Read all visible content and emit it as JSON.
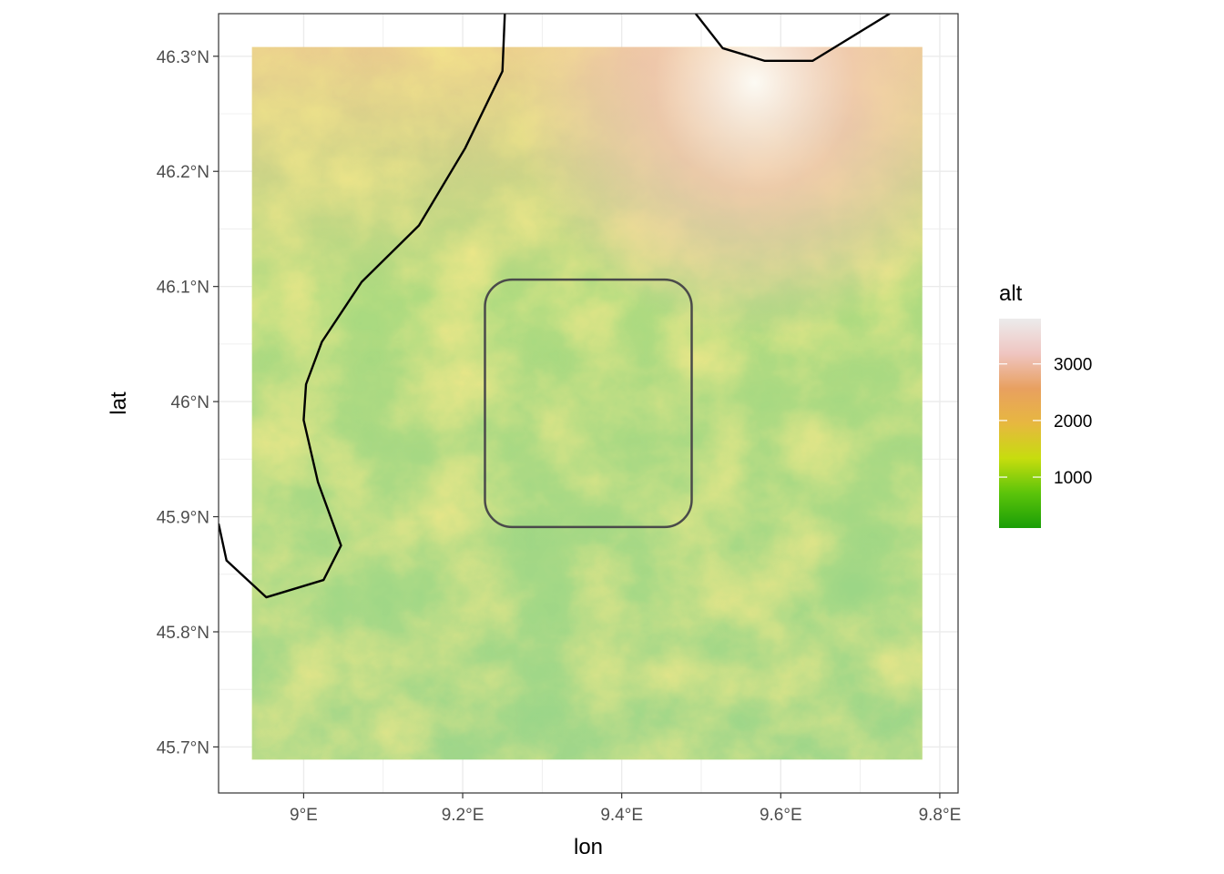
{
  "chart_data": {
    "type": "heatmap",
    "title": "",
    "xlabel": "lon",
    "ylabel": "lat",
    "xlim": [
      8.893,
      9.823
    ],
    "ylim": [
      45.66,
      46.337
    ],
    "x_ticks": [
      {
        "value": 9.0,
        "label": "9°E"
      },
      {
        "value": 9.2,
        "label": "9.2°E"
      },
      {
        "value": 9.4,
        "label": "9.4°E"
      },
      {
        "value": 9.6,
        "label": "9.6°E"
      },
      {
        "value": 9.8,
        "label": "9.8°E"
      }
    ],
    "y_ticks": [
      {
        "value": 45.7,
        "label": "45.7°N"
      },
      {
        "value": 45.8,
        "label": "45.8°N"
      },
      {
        "value": 45.9,
        "label": "45.9°N"
      },
      {
        "value": 46.0,
        "label": "46°N"
      },
      {
        "value": 46.1,
        "label": "46.1°N"
      },
      {
        "value": 46.2,
        "label": "46.2°N"
      },
      {
        "value": 46.3,
        "label": "46.3°N"
      }
    ],
    "grid": true,
    "raster_extent": {
      "lon": [
        8.935,
        9.778
      ],
      "lat": [
        45.689,
        46.308
      ]
    },
    "legend": {
      "title": "alt",
      "position": "right",
      "range": [
        100,
        3800
      ],
      "breaks": [
        {
          "value": 1000,
          "label": "1000"
        },
        {
          "value": 2000,
          "label": "2000"
        },
        {
          "value": 3000,
          "label": "3000"
        }
      ],
      "colors": [
        "#1a9e07",
        "#5cc40a",
        "#c7dd0e",
        "#e7b740",
        "#e8a060",
        "#efc5c1",
        "#ececec"
      ]
    },
    "border_lines": [
      {
        "name": "border-west",
        "points": [
          [
            9.253,
            46.337
          ],
          [
            9.25,
            46.287
          ],
          [
            9.203,
            46.22
          ],
          [
            9.145,
            46.153
          ],
          [
            9.073,
            46.104
          ],
          [
            9.023,
            46.052
          ],
          [
            9.003,
            46.015
          ],
          [
            9.0,
            45.984
          ],
          [
            9.018,
            45.93
          ],
          [
            9.047,
            45.875
          ],
          [
            9.025,
            45.845
          ],
          [
            8.953,
            45.83
          ],
          [
            8.903,
            45.862
          ],
          [
            8.893,
            45.894
          ]
        ]
      },
      {
        "name": "border-east",
        "points": [
          [
            9.493,
            46.337
          ],
          [
            9.527,
            46.307
          ],
          [
            9.58,
            46.296
          ],
          [
            9.64,
            46.296
          ],
          [
            9.737,
            46.337
          ]
        ]
      }
    ],
    "inset_box": {
      "lon": [
        9.228,
        9.488
      ],
      "lat": [
        45.891,
        46.106
      ]
    },
    "colors": {
      "border": "#000000",
      "box": "#4a4a4a",
      "grid": "#ebebeb",
      "panel_border": "#333333"
    }
  }
}
